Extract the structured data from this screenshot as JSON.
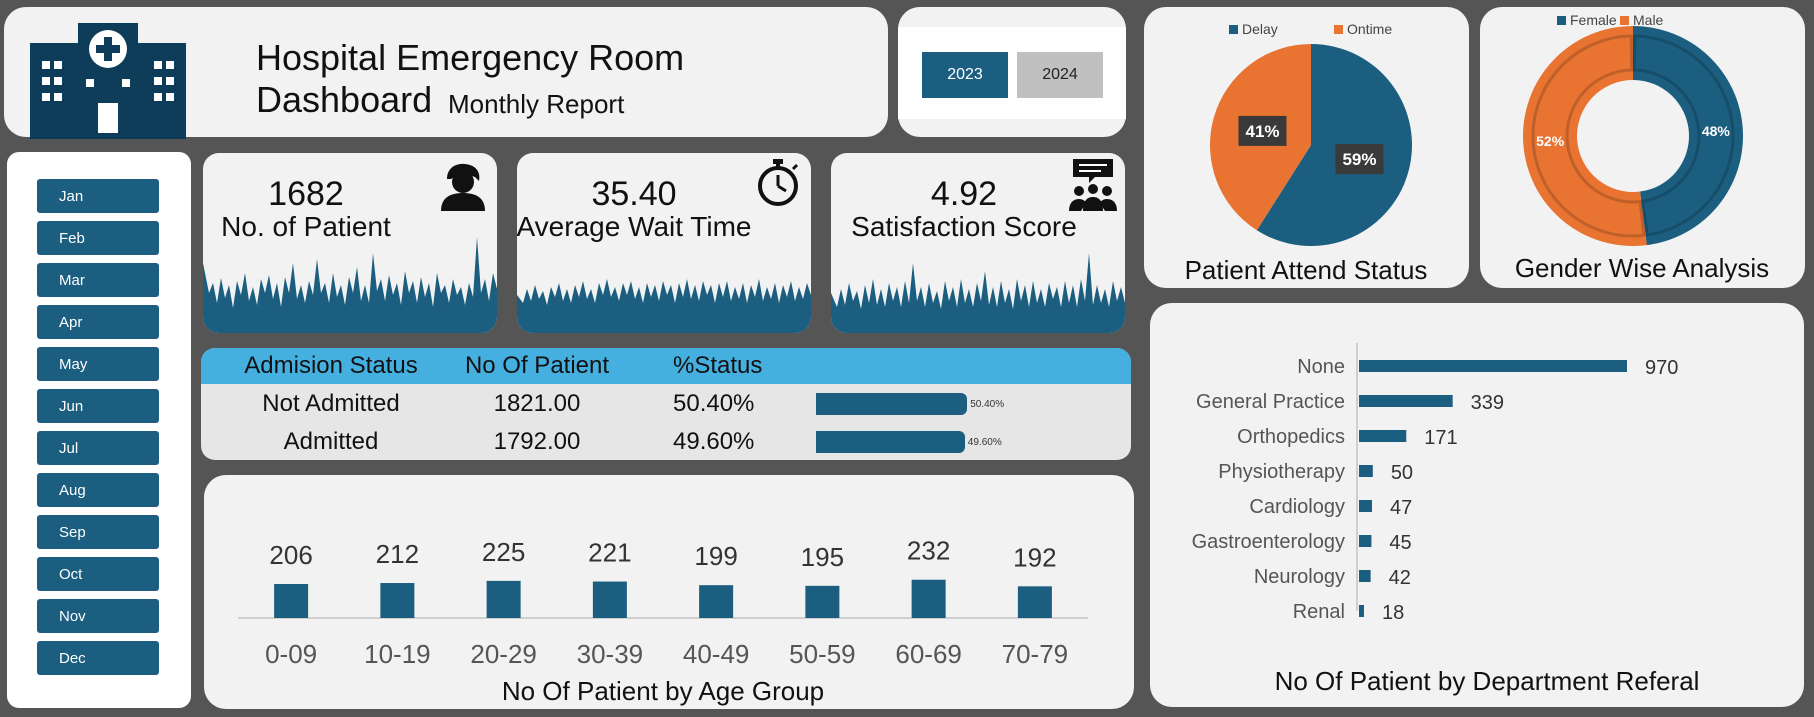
{
  "header": {
    "title": "Hospital Emergency Room Dashboard",
    "subtitle": "Monthly Report",
    "logo_icon": "hospital-icon"
  },
  "years": {
    "items": [
      "2023",
      "2024"
    ],
    "selected": "2023"
  },
  "months": [
    "Jan",
    "Feb",
    "Mar",
    "Apr",
    "May",
    "Jun",
    "Jul",
    "Aug",
    "Sep",
    "Oct",
    "Nov",
    "Dec"
  ],
  "kpis": [
    {
      "value": "1682",
      "label": "No. of Patient",
      "icon": "patient-icon"
    },
    {
      "value": "35.40",
      "label": "Average Wait Time",
      "icon": "stopwatch-icon"
    },
    {
      "value": "4.92",
      "label": "Satisfaction Score",
      "icon": "feedback-group-icon"
    }
  ],
  "admission": {
    "headers": [
      "Admision Status",
      "No Of Patient",
      "%Status"
    ],
    "rows": [
      {
        "status": "Not Admitted",
        "count": "1821.00",
        "pct": "50.40%",
        "bar_label": "50.40%",
        "fraction": 0.504
      },
      {
        "status": "Admitted",
        "count": "1792.00",
        "pct": "49.60%",
        "bar_label": "49.60%",
        "fraction": 0.496
      }
    ]
  },
  "colors": {
    "primary": "#1b5e80",
    "orange": "#e97432",
    "header_blue": "#45b0e0",
    "panel": "#f2f2f2",
    "background": "#555555"
  },
  "chart_data": [
    {
      "type": "bar",
      "title": "No Of Patient by Age Group",
      "categories": [
        "0-09",
        "10-19",
        "20-29",
        "30-39",
        "40-49",
        "50-59",
        "60-69",
        "70-79"
      ],
      "values": [
        206,
        212,
        225,
        221,
        199,
        195,
        232,
        192
      ],
      "ylim": [
        0,
        250
      ],
      "grid": false
    },
    {
      "type": "bar",
      "orientation": "horizontal",
      "title": "No Of Patient by Department Referal",
      "categories": [
        "None",
        "General Practice",
        "Orthopedics",
        "Physiotherapy",
        "Cardiology",
        "Gastroenterology",
        "Neurology",
        "Renal"
      ],
      "values": [
        970,
        339,
        171,
        50,
        47,
        45,
        42,
        18
      ],
      "xlim": [
        0,
        1000
      ],
      "grid": false
    },
    {
      "type": "pie",
      "title": "Patient Attend Status",
      "legend_position": "top",
      "slices": [
        {
          "name": "Delay",
          "value": 59,
          "label": "59%",
          "color": "#1b5e80"
        },
        {
          "name": "Ontime",
          "value": 41,
          "label": "41%",
          "color": "#e97432"
        }
      ]
    },
    {
      "type": "pie",
      "variant": "donut",
      "title": "Gender Wise Analysis",
      "legend_position": "top",
      "slices": [
        {
          "name": "Female",
          "value": 48,
          "label": "48%",
          "color": "#1b5e80"
        },
        {
          "name": "Male",
          "value": 52,
          "label": "52%",
          "color": "#e97432"
        }
      ]
    }
  ]
}
